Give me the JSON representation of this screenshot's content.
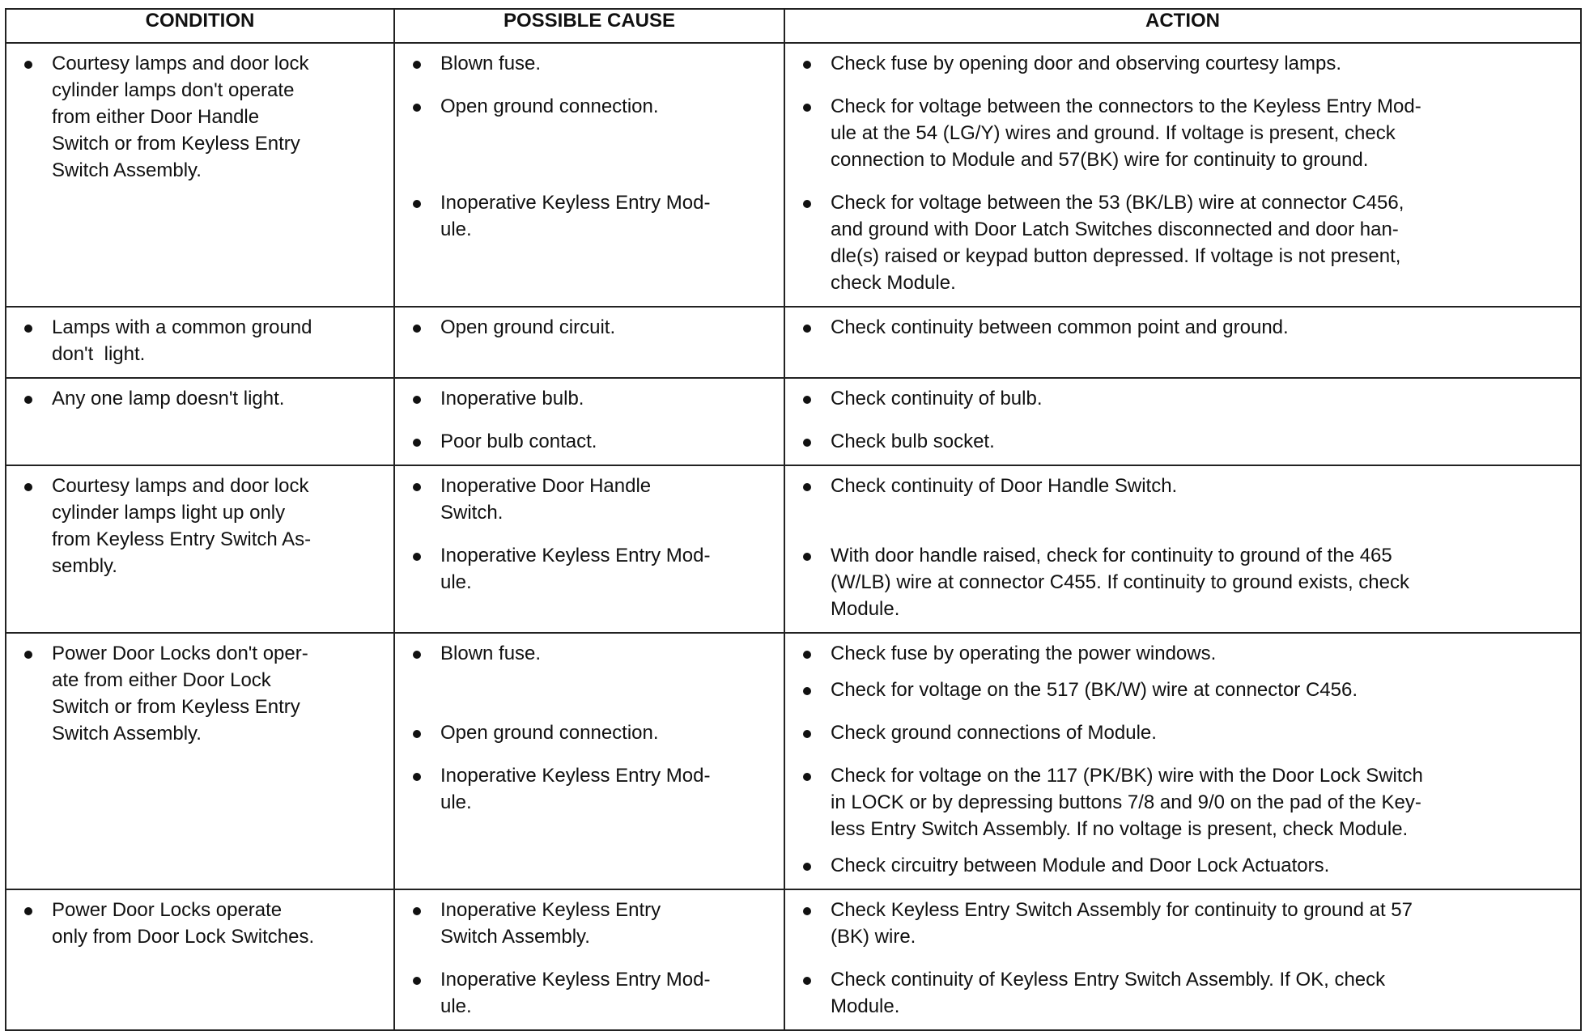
{
  "header": [
    "CONDITION",
    "POSSIBLE CAUSE",
    "ACTION"
  ],
  "rows": [
    {
      "condition": "Courtesy lamps and door lock\ncylinder lamps don't operate\nfrom either Door Handle\nSwitch or from Keyless Entry\nSwitch Assembly.",
      "groups": [
        {
          "causes": [
            "Blown fuse."
          ],
          "actions": [
            "Check fuse by opening door and observing courtesy lamps."
          ]
        },
        {
          "causes": [
            "Open ground connection."
          ],
          "actions": [
            "Check for voltage between the connectors to the Keyless Entry Mod-\nule at the 54 (LG/Y) wires and ground. If voltage is present, check\nconnection to Module and 57(BK) wire for continuity to ground."
          ]
        },
        {
          "causes": [
            "Inoperative Keyless Entry Mod-\nule."
          ],
          "actions": [
            "Check for voltage between the 53 (BK/LB) wire at connector C456,\nand ground with Door Latch Switches disconnected and door han-\ndle(s) raised or keypad button depressed. If voltage is not present,\ncheck Module."
          ]
        }
      ]
    },
    {
      "condition": "Lamps with a common ground\ndon't  light.",
      "groups": [
        {
          "causes": [
            "Open ground circuit."
          ],
          "actions": [
            "Check continuity between common point and ground."
          ]
        }
      ]
    },
    {
      "condition": "Any one lamp doesn't light.",
      "groups": [
        {
          "causes": [
            "Inoperative bulb."
          ],
          "actions": [
            "Check continuity of bulb."
          ]
        },
        {
          "causes": [
            "Poor bulb contact."
          ],
          "actions": [
            "Check bulb socket."
          ]
        }
      ]
    },
    {
      "condition": "Courtesy lamps and door lock\ncylinder lamps light up only\nfrom Keyless Entry Switch As-\nsembly.",
      "groups": [
        {
          "causes": [
            "Inoperative Door Handle\nSwitch."
          ],
          "actions": [
            "Check continuity of Door Handle Switch."
          ]
        },
        {
          "causes": [
            "Inoperative Keyless Entry Mod-\nule."
          ],
          "actions": [
            "With door handle raised, check for continuity to ground of the 465\n(W/LB) wire at connector C455. If continuity to ground exists, check\nModule."
          ]
        }
      ]
    },
    {
      "condition": "Power Door Locks don't oper-\nate from either Door Lock\nSwitch or from Keyless Entry\nSwitch Assembly.",
      "groups": [
        {
          "causes": [
            "Blown fuse."
          ],
          "actions": [
            "Check fuse by operating the power windows.",
            "Check for voltage on the 517 (BK/W) wire at connector C456."
          ]
        },
        {
          "causes": [
            "Open ground connection."
          ],
          "actions": [
            "Check ground connections of Module."
          ]
        },
        {
          "causes": [
            "Inoperative Keyless Entry Mod-\nule."
          ],
          "actions": [
            "Check for voltage on the 117 (PK/BK) wire with the Door Lock Switch\nin LOCK or by depressing buttons 7/8 and 9/0 on the pad of the Key-\nless Entry Switch Assembly. If no voltage is present, check Module.",
            "Check circuitry between Module and Door Lock Actuators."
          ]
        }
      ]
    },
    {
      "condition": "Power Door Locks operate\nonly from Door Lock Switches.",
      "groups": [
        {
          "causes": [
            "Inoperative Keyless Entry\nSwitch Assembly."
          ],
          "actions": [
            "Check Keyless Entry Switch Assembly for continuity to ground at 57\n(BK) wire."
          ]
        },
        {
          "causes": [
            "Inoperative Keyless Entry Mod-\nule."
          ],
          "actions": [
            "Check continuity of Keyless Entry Switch Assembly. If OK, check\nModule."
          ]
        }
      ]
    }
  ]
}
